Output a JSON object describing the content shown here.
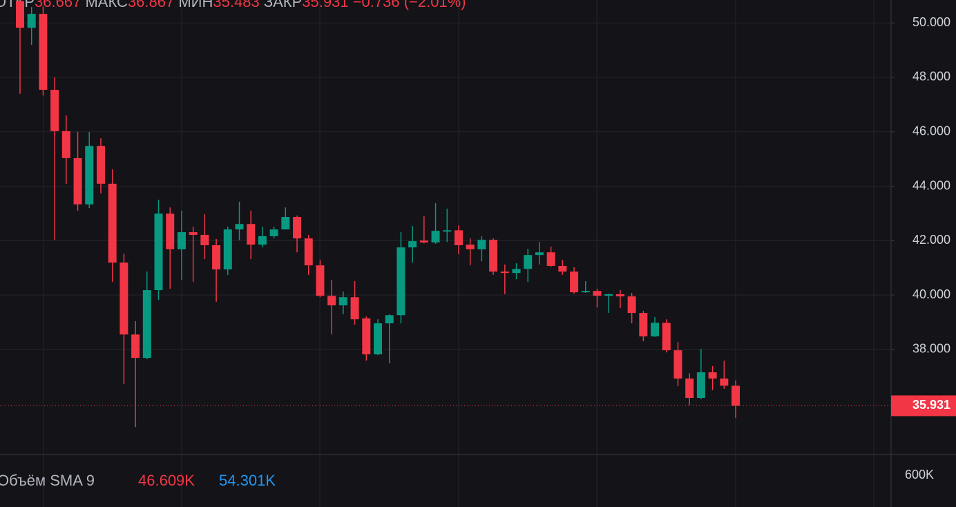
{
  "chart_data": {
    "type": "candlestick",
    "header": {
      "open_label": "ОТКР",
      "high_label": "МАКС",
      "low_label": "МИН",
      "close_label": "ЗАКР",
      "change": "−0.736 (−2.01%)"
    },
    "up_color": "#089981",
    "down_color": "#f23645",
    "open": [
      50.8,
      49.82,
      50.33,
      47.54,
      46.02,
      45.03,
      43.33,
      45.48,
      44.09,
      41.19,
      38.55,
      37.69,
      40.18,
      42.99,
      41.68,
      42.31,
      42.21,
      41.83,
      40.94,
      42.41,
      42.61,
      41.85,
      42.16,
      42.41,
      42.87,
      42.08,
      41.09,
      39.97,
      39.62,
      39.92,
      39.14,
      37.82,
      38.96,
      39.26,
      41.75,
      42.0,
      41.93,
      42.33,
      42.38,
      41.85,
      41.68,
      42.03,
      40.86,
      40.81,
      40.96,
      41.47,
      41.57,
      41.07,
      40.86,
      40.1,
      40.15,
      39.97,
      40.03,
      39.95,
      39.34,
      38.48,
      38.98,
      37.97,
      36.93,
      36.22,
      37.16,
      36.93,
      36.667
    ],
    "high": [
      51.0,
      50.58,
      50.6,
      48.0,
      46.6,
      46.0,
      45.99,
      45.76,
      44.62,
      41.52,
      39.04,
      40.86,
      43.5,
      43.22,
      43.1,
      42.51,
      42.97,
      42.06,
      42.51,
      43.43,
      43.1,
      42.51,
      42.51,
      43.22,
      42.92,
      42.21,
      41.29,
      40.56,
      40.13,
      40.51,
      39.21,
      39.11,
      39.29,
      42.31,
      42.54,
      42.89,
      43.38,
      43.17,
      42.56,
      42.08,
      42.16,
      42.08,
      41.12,
      41.17,
      41.7,
      41.95,
      41.78,
      41.29,
      41.02,
      40.51,
      40.23,
      40.05,
      40.18,
      40.08,
      39.42,
      39.19,
      39.11,
      38.27,
      37.13,
      38.02,
      37.39,
      37.59,
      36.867
    ],
    "low": [
      47.39,
      49.19,
      47.33,
      42.03,
      44.09,
      43.1,
      43.2,
      43.73,
      40.48,
      36.73,
      35.15,
      37.64,
      39.82,
      40.23,
      40.56,
      40.48,
      41.32,
      39.75,
      40.74,
      42.01,
      41.32,
      41.75,
      42.08,
      42.41,
      41.57,
      40.74,
      39.92,
      38.55,
      39.29,
      38.91,
      37.59,
      37.79,
      37.49,
      38.96,
      41.19,
      41.9,
      41.88,
      41.95,
      41.5,
      41.09,
      41.24,
      40.74,
      40.03,
      40.58,
      40.48,
      41.12,
      41.04,
      40.74,
      40.05,
      40.08,
      39.54,
      39.34,
      39.52,
      38.96,
      38.3,
      38.46,
      37.89,
      36.65,
      35.96,
      36.17,
      36.5,
      36.55,
      35.483
    ],
    "close": [
      49.82,
      50.33,
      47.54,
      46.02,
      45.03,
      43.33,
      45.48,
      44.09,
      41.19,
      38.55,
      37.69,
      40.18,
      42.99,
      41.68,
      42.31,
      42.21,
      41.83,
      40.94,
      42.41,
      42.61,
      41.85,
      42.16,
      42.41,
      42.87,
      42.08,
      41.09,
      39.97,
      39.62,
      39.92,
      39.11,
      37.82,
      38.96,
      39.26,
      41.75,
      41.98,
      41.93,
      42.36,
      42.38,
      41.83,
      41.68,
      42.03,
      40.86,
      40.81,
      40.96,
      41.47,
      41.57,
      41.07,
      40.86,
      40.1,
      40.15,
      39.97,
      40.03,
      39.95,
      39.34,
      38.48,
      38.98,
      37.97,
      36.93,
      36.22,
      37.16,
      36.93,
      36.667,
      35.931
    ],
    "ylim": [
      34.14,
      50.84
    ],
    "yticks": [
      {
        "value": 38,
        "label": "38.000"
      },
      {
        "value": 40,
        "label": "40.000"
      },
      {
        "value": 42,
        "label": "42.000"
      },
      {
        "value": 44,
        "label": "44.000"
      },
      {
        "value": 46,
        "label": "46.000"
      },
      {
        "value": 48,
        "label": "48.000"
      },
      {
        "value": 50,
        "label": "50.000"
      }
    ],
    "grid": true,
    "volume": {
      "title": "Объём SMA 9",
      "legend": [
        "46.609K",
        "54.301K"
      ],
      "axis_label": "600K"
    }
  }
}
